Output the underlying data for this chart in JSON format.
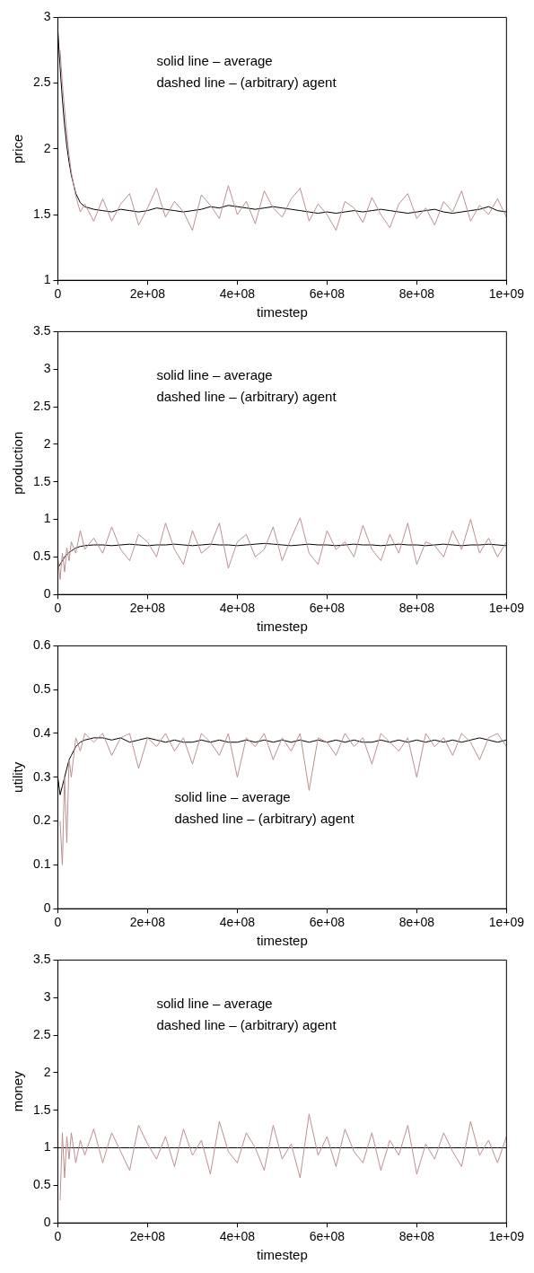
{
  "chart_data": [
    {
      "type": "line",
      "xlabel": "timestep",
      "ylabel": "price",
      "annotations": [
        "solid line – average",
        "dashed line – (arbitrary) agent"
      ],
      "x": [
        0,
        5000000,
        10000000,
        15000000,
        20000000,
        25000000,
        30000000,
        40000000,
        50000000,
        60000000,
        80000000,
        100000000,
        120000000,
        140000000,
        160000000,
        180000000,
        200000000,
        220000000,
        240000000,
        260000000,
        280000000,
        300000000,
        320000000,
        340000000,
        360000000,
        380000000,
        400000000,
        420000000,
        440000000,
        460000000,
        480000000,
        500000000,
        520000000,
        540000000,
        560000000,
        580000000,
        600000000,
        620000000,
        640000000,
        660000000,
        680000000,
        700000000,
        720000000,
        740000000,
        760000000,
        780000000,
        800000000,
        820000000,
        840000000,
        860000000,
        880000000,
        900000000,
        920000000,
        940000000,
        960000000,
        980000000,
        1000000000
      ],
      "xlim": [
        0,
        1000000000
      ],
      "xticks": [
        {
          "value": 0,
          "label": "0"
        },
        {
          "value": 200000000,
          "label": "2e+08"
        },
        {
          "value": 400000000,
          "label": "4e+08"
        },
        {
          "value": 600000000,
          "label": "6e+08"
        },
        {
          "value": 800000000,
          "label": "8e+08"
        },
        {
          "value": 1000000000,
          "label": "1e+09"
        }
      ],
      "ylim": [
        1,
        3
      ],
      "yticks": [
        1,
        1.5,
        2,
        2.5,
        3
      ],
      "series": [
        {
          "color": "#bc8f8f",
          "values": [
            null,
            2.75,
            2.5,
            2.3,
            2.12,
            1.95,
            1.82,
            1.64,
            1.52,
            1.58,
            1.45,
            1.62,
            1.45,
            1.58,
            1.66,
            1.42,
            1.55,
            1.7,
            1.48,
            1.6,
            1.52,
            1.38,
            1.65,
            1.57,
            1.47,
            1.72,
            1.5,
            1.6,
            1.43,
            1.68,
            1.55,
            1.48,
            1.62,
            1.7,
            1.45,
            1.58,
            1.5,
            1.38,
            1.6,
            1.55,
            1.44,
            1.63,
            1.5,
            1.4,
            1.58,
            1.66,
            1.47,
            1.55,
            1.42,
            1.6,
            1.52,
            1.68,
            1.45,
            1.57,
            1.5,
            1.62,
            1.48
          ]
        },
        {
          "color": "#000000",
          "values": [
            2.9,
            2.62,
            2.38,
            2.18,
            2.02,
            1.9,
            1.8,
            1.66,
            1.59,
            1.56,
            1.54,
            1.53,
            1.52,
            1.54,
            1.53,
            1.52,
            1.53,
            1.55,
            1.54,
            1.53,
            1.52,
            1.53,
            1.54,
            1.56,
            1.55,
            1.57,
            1.56,
            1.55,
            1.54,
            1.55,
            1.56,
            1.55,
            1.54,
            1.53,
            1.52,
            1.51,
            1.52,
            1.51,
            1.52,
            1.53,
            1.52,
            1.53,
            1.54,
            1.53,
            1.52,
            1.51,
            1.52,
            1.53,
            1.54,
            1.52,
            1.51,
            1.52,
            1.53,
            1.54,
            1.56,
            1.53,
            1.52
          ]
        }
      ]
    },
    {
      "type": "line",
      "xlabel": "timestep",
      "ylabel": "production",
      "annotations": [
        "solid line – average",
        "dashed line – (arbitrary) agent"
      ],
      "x": [
        0,
        5000000,
        10000000,
        15000000,
        20000000,
        25000000,
        30000000,
        40000000,
        50000000,
        60000000,
        80000000,
        100000000,
        120000000,
        140000000,
        160000000,
        180000000,
        200000000,
        220000000,
        240000000,
        260000000,
        280000000,
        300000000,
        320000000,
        340000000,
        360000000,
        380000000,
        400000000,
        420000000,
        440000000,
        460000000,
        480000000,
        500000000,
        520000000,
        540000000,
        560000000,
        580000000,
        600000000,
        620000000,
        640000000,
        660000000,
        680000000,
        700000000,
        720000000,
        740000000,
        760000000,
        780000000,
        800000000,
        820000000,
        840000000,
        860000000,
        880000000,
        900000000,
        920000000,
        940000000,
        960000000,
        980000000,
        1000000000
      ],
      "xlim": [
        0,
        1000000000
      ],
      "xticks": [
        {
          "value": 0,
          "label": "0"
        },
        {
          "value": 200000000,
          "label": "2e+08"
        },
        {
          "value": 400000000,
          "label": "4e+08"
        },
        {
          "value": 600000000,
          "label": "6e+08"
        },
        {
          "value": 800000000,
          "label": "8e+08"
        },
        {
          "value": 1000000000,
          "label": "1e+09"
        }
      ],
      "ylim": [
        0,
        3.5
      ],
      "yticks": [
        0,
        0.5,
        1,
        1.5,
        2,
        2.5,
        3,
        3.5
      ],
      "series": [
        {
          "color": "#bc8f8f",
          "values": [
            0.5,
            0.2,
            0.55,
            0.3,
            0.62,
            0.45,
            0.7,
            0.55,
            0.85,
            0.6,
            0.75,
            0.55,
            0.9,
            0.6,
            0.45,
            0.8,
            0.7,
            0.5,
            0.95,
            0.6,
            0.4,
            0.85,
            0.55,
            0.65,
            0.95,
            0.35,
            0.7,
            0.8,
            0.5,
            0.6,
            0.9,
            0.45,
            0.75,
            1.02,
            0.55,
            0.4,
            0.85,
            0.6,
            0.7,
            0.5,
            0.92,
            0.6,
            0.45,
            0.8,
            0.55,
            0.95,
            0.4,
            0.7,
            0.65,
            0.5,
            0.85,
            0.6,
            1.0,
            0.55,
            0.75,
            0.5,
            0.7
          ]
        },
        {
          "color": "#000000",
          "values": [
            0.35,
            0.4,
            0.45,
            0.5,
            0.53,
            0.56,
            0.58,
            0.62,
            0.64,
            0.65,
            0.66,
            0.66,
            0.65,
            0.66,
            0.67,
            0.66,
            0.65,
            0.66,
            0.66,
            0.67,
            0.66,
            0.65,
            0.66,
            0.67,
            0.66,
            0.66,
            0.65,
            0.66,
            0.67,
            0.68,
            0.67,
            0.66,
            0.65,
            0.66,
            0.67,
            0.66,
            0.66,
            0.65,
            0.66,
            0.67,
            0.66,
            0.66,
            0.65,
            0.66,
            0.67,
            0.66,
            0.66,
            0.65,
            0.66,
            0.67,
            0.66,
            0.65,
            0.66,
            0.66,
            0.67,
            0.66,
            0.65
          ]
        }
      ]
    },
    {
      "type": "line",
      "xlabel": "timestep",
      "ylabel": "utility",
      "annotations": [
        "solid line – average",
        "dashed line – (arbitrary) agent"
      ],
      "x": [
        0,
        5000000,
        10000000,
        15000000,
        20000000,
        25000000,
        30000000,
        40000000,
        50000000,
        60000000,
        80000000,
        100000000,
        120000000,
        140000000,
        160000000,
        180000000,
        200000000,
        220000000,
        240000000,
        260000000,
        280000000,
        300000000,
        320000000,
        340000000,
        360000000,
        380000000,
        400000000,
        420000000,
        440000000,
        460000000,
        480000000,
        500000000,
        520000000,
        540000000,
        560000000,
        580000000,
        600000000,
        620000000,
        640000000,
        660000000,
        680000000,
        700000000,
        720000000,
        740000000,
        760000000,
        780000000,
        800000000,
        820000000,
        840000000,
        860000000,
        880000000,
        900000000,
        920000000,
        940000000,
        960000000,
        980000000,
        1000000000
      ],
      "xlim": [
        0,
        1000000000
      ],
      "xticks": [
        {
          "value": 0,
          "label": "0"
        },
        {
          "value": 200000000,
          "label": "2e+08"
        },
        {
          "value": 400000000,
          "label": "4e+08"
        },
        {
          "value": 600000000,
          "label": "6e+08"
        },
        {
          "value": 800000000,
          "label": "8e+08"
        },
        {
          "value": 1000000000,
          "label": "1e+09"
        }
      ],
      "ylim": [
        0,
        0.6
      ],
      "yticks": [
        0,
        0.1,
        0.2,
        0.3,
        0.4,
        0.5,
        0.6
      ],
      "series": [
        {
          "color": "#bc8f8f",
          "values": [
            null,
            0.2,
            0.1,
            0.3,
            0.15,
            0.34,
            0.3,
            0.39,
            0.36,
            0.4,
            0.38,
            0.4,
            0.35,
            0.39,
            0.4,
            0.32,
            0.39,
            0.37,
            0.4,
            0.36,
            0.39,
            0.33,
            0.4,
            0.38,
            0.35,
            0.4,
            0.3,
            0.39,
            0.37,
            0.4,
            0.34,
            0.39,
            0.36,
            0.4,
            0.27,
            0.39,
            0.38,
            0.35,
            0.4,
            0.37,
            0.39,
            0.33,
            0.4,
            0.38,
            0.36,
            0.39,
            0.3,
            0.4,
            0.37,
            0.39,
            0.35,
            0.4,
            0.38,
            0.34,
            0.39,
            0.4,
            0.37
          ]
        },
        {
          "color": "#000000",
          "values": [
            0.3,
            0.26,
            0.28,
            0.3,
            0.32,
            0.34,
            0.35,
            0.37,
            0.38,
            0.385,
            0.39,
            0.39,
            0.385,
            0.39,
            0.38,
            0.385,
            0.39,
            0.385,
            0.38,
            0.385,
            0.38,
            0.38,
            0.385,
            0.38,
            0.385,
            0.38,
            0.38,
            0.385,
            0.38,
            0.385,
            0.38,
            0.385,
            0.38,
            0.385,
            0.38,
            0.385,
            0.38,
            0.385,
            0.38,
            0.385,
            0.38,
            0.38,
            0.385,
            0.38,
            0.385,
            0.38,
            0.385,
            0.38,
            0.385,
            0.38,
            0.385,
            0.38,
            0.385,
            0.39,
            0.385,
            0.38,
            0.385
          ]
        }
      ]
    },
    {
      "type": "line",
      "xlabel": "timestep",
      "ylabel": "money",
      "annotations": [
        "solid line – average",
        "dashed line – (arbitrary) agent"
      ],
      "x": [
        0,
        5000000,
        10000000,
        15000000,
        20000000,
        25000000,
        30000000,
        40000000,
        50000000,
        60000000,
        80000000,
        100000000,
        120000000,
        140000000,
        160000000,
        180000000,
        200000000,
        220000000,
        240000000,
        260000000,
        280000000,
        300000000,
        320000000,
        340000000,
        360000000,
        380000000,
        400000000,
        420000000,
        440000000,
        460000000,
        480000000,
        500000000,
        520000000,
        540000000,
        560000000,
        580000000,
        600000000,
        620000000,
        640000000,
        660000000,
        680000000,
        700000000,
        720000000,
        740000000,
        760000000,
        780000000,
        800000000,
        820000000,
        840000000,
        860000000,
        880000000,
        900000000,
        920000000,
        940000000,
        960000000,
        980000000,
        1000000000
      ],
      "xlim": [
        0,
        1000000000
      ],
      "xticks": [
        {
          "value": 0,
          "label": "0"
        },
        {
          "value": 200000000,
          "label": "2e+08"
        },
        {
          "value": 400000000,
          "label": "4e+08"
        },
        {
          "value": 600000000,
          "label": "6e+08"
        },
        {
          "value": 800000000,
          "label": "8e+08"
        },
        {
          "value": 1000000000,
          "label": "1e+09"
        }
      ],
      "ylim": [
        0,
        3.5
      ],
      "yticks": [
        0,
        0.5,
        1,
        1.5,
        2,
        2.5,
        3,
        3.5
      ],
      "series": [
        {
          "color": "#bc8f8f",
          "values": [
            null,
            0.3,
            1.2,
            0.6,
            1.15,
            0.85,
            1.2,
            0.8,
            1.1,
            0.9,
            1.25,
            0.8,
            1.2,
            0.95,
            0.7,
            1.3,
            1.05,
            0.85,
            1.15,
            0.75,
            1.25,
            0.9,
            1.1,
            0.65,
            1.35,
            0.95,
            0.8,
            1.2,
            1.0,
            0.7,
            1.3,
            0.85,
            1.05,
            0.6,
            1.45,
            0.9,
            1.15,
            0.75,
            1.25,
            0.95,
            0.8,
            1.2,
            0.7,
            1.1,
            0.9,
            1.3,
            0.65,
            1.05,
            0.85,
            1.2,
            0.95,
            0.75,
            1.35,
            0.9,
            1.1,
            0.8,
            1.15
          ]
        },
        {
          "color": "#000000",
          "values": [
            1,
            1,
            1,
            1,
            1,
            1,
            1,
            1,
            1,
            1,
            1,
            1,
            1,
            1,
            1,
            1,
            1,
            1,
            1,
            1,
            1,
            1,
            1,
            1,
            1,
            1,
            1,
            1,
            1,
            1,
            1,
            1,
            1,
            1,
            1,
            1,
            1,
            1,
            1,
            1,
            1,
            1,
            1,
            1,
            1,
            1,
            1,
            1,
            1,
            1,
            1,
            1,
            1,
            1,
            1,
            1,
            1
          ]
        }
      ]
    }
  ]
}
